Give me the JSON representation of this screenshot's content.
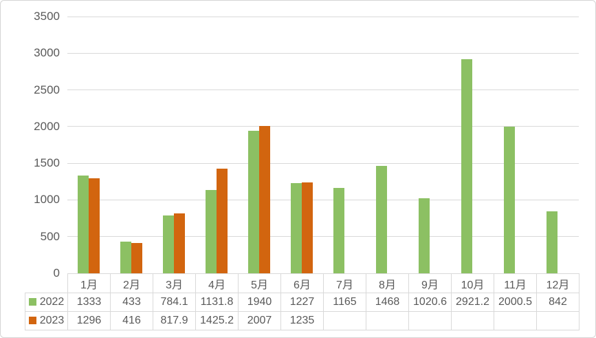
{
  "chart_data": {
    "type": "bar",
    "title": "",
    "xlabel": "",
    "ylabel": "",
    "categories": [
      "1月",
      "2月",
      "3月",
      "4月",
      "5月",
      "6月",
      "7月",
      "8月",
      "9月",
      "10月",
      "11月",
      "12月"
    ],
    "series": [
      {
        "name": "2022",
        "color": "#8CC063",
        "values": [
          1333,
          433,
          784.1,
          1131.8,
          1940,
          1227,
          1165,
          1468,
          1020.6,
          2921.2,
          2000.5,
          842
        ]
      },
      {
        "name": "2023",
        "color": "#D2650F",
        "values": [
          1296,
          416,
          817.9,
          1425.2,
          2007,
          1235,
          null,
          null,
          null,
          null,
          null,
          null
        ]
      }
    ],
    "ylim": [
      0,
      3500
    ],
    "ytick_step": 500,
    "ytick_labels": [
      "0",
      "500",
      "1000",
      "1500",
      "2000",
      "2500",
      "3000",
      "3500"
    ],
    "grid": true,
    "data_table": true,
    "legend_position": "data-table-left"
  },
  "style": {
    "series_colors": {
      "2022": "#8CC063",
      "2023": "#D2650F"
    },
    "grid_color": "#D9D9D9",
    "table_border_color": "#D9D9D9",
    "text_color": "#595959",
    "chart_border_color": "#D4D4D4",
    "background": "#FFFFFF"
  }
}
